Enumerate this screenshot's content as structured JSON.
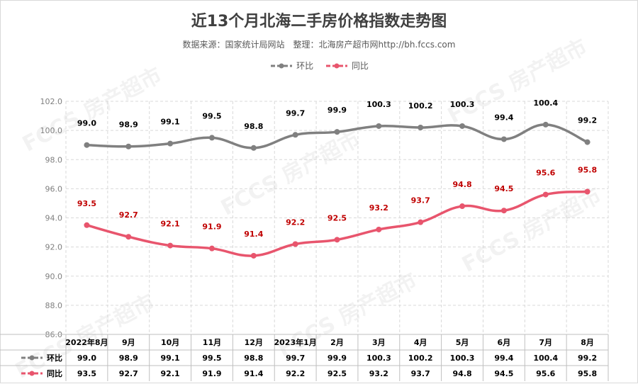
{
  "title": "近13个月北海二手房价格指数走势图",
  "subtitle": "数据来源：国家统计局网站　整理：北海房产超市网http://bh.fccs.com",
  "watermark": "FCCS 房产超市",
  "colors": {
    "mom": "#808080",
    "yoy": "#e8556d",
    "mom_label": "#000000",
    "yoy_label": "#c00000"
  },
  "chart_data": {
    "type": "line",
    "categories": [
      "2022年8月",
      "9月",
      "10月",
      "11月",
      "12月",
      "2023年1月",
      "2月",
      "3月",
      "4月",
      "5月",
      "6月",
      "7月",
      "8月"
    ],
    "series": [
      {
        "name": "环比",
        "values": [
          99.0,
          98.9,
          99.1,
          99.5,
          98.8,
          99.7,
          99.9,
          100.3,
          100.2,
          100.3,
          99.4,
          100.4,
          99.2
        ]
      },
      {
        "name": "同比",
        "values": [
          93.5,
          92.7,
          92.1,
          91.9,
          91.4,
          92.2,
          92.5,
          93.2,
          93.7,
          94.8,
          94.5,
          95.6,
          95.8
        ]
      }
    ],
    "ylim": [
      86.0,
      102.0
    ],
    "yticks": [
      "86.0",
      "88.0",
      "90.0",
      "92.0",
      "94.0",
      "96.0",
      "98.0",
      "100.0",
      "102.0"
    ],
    "grid": true,
    "legend": "top-center",
    "data_table": true
  }
}
